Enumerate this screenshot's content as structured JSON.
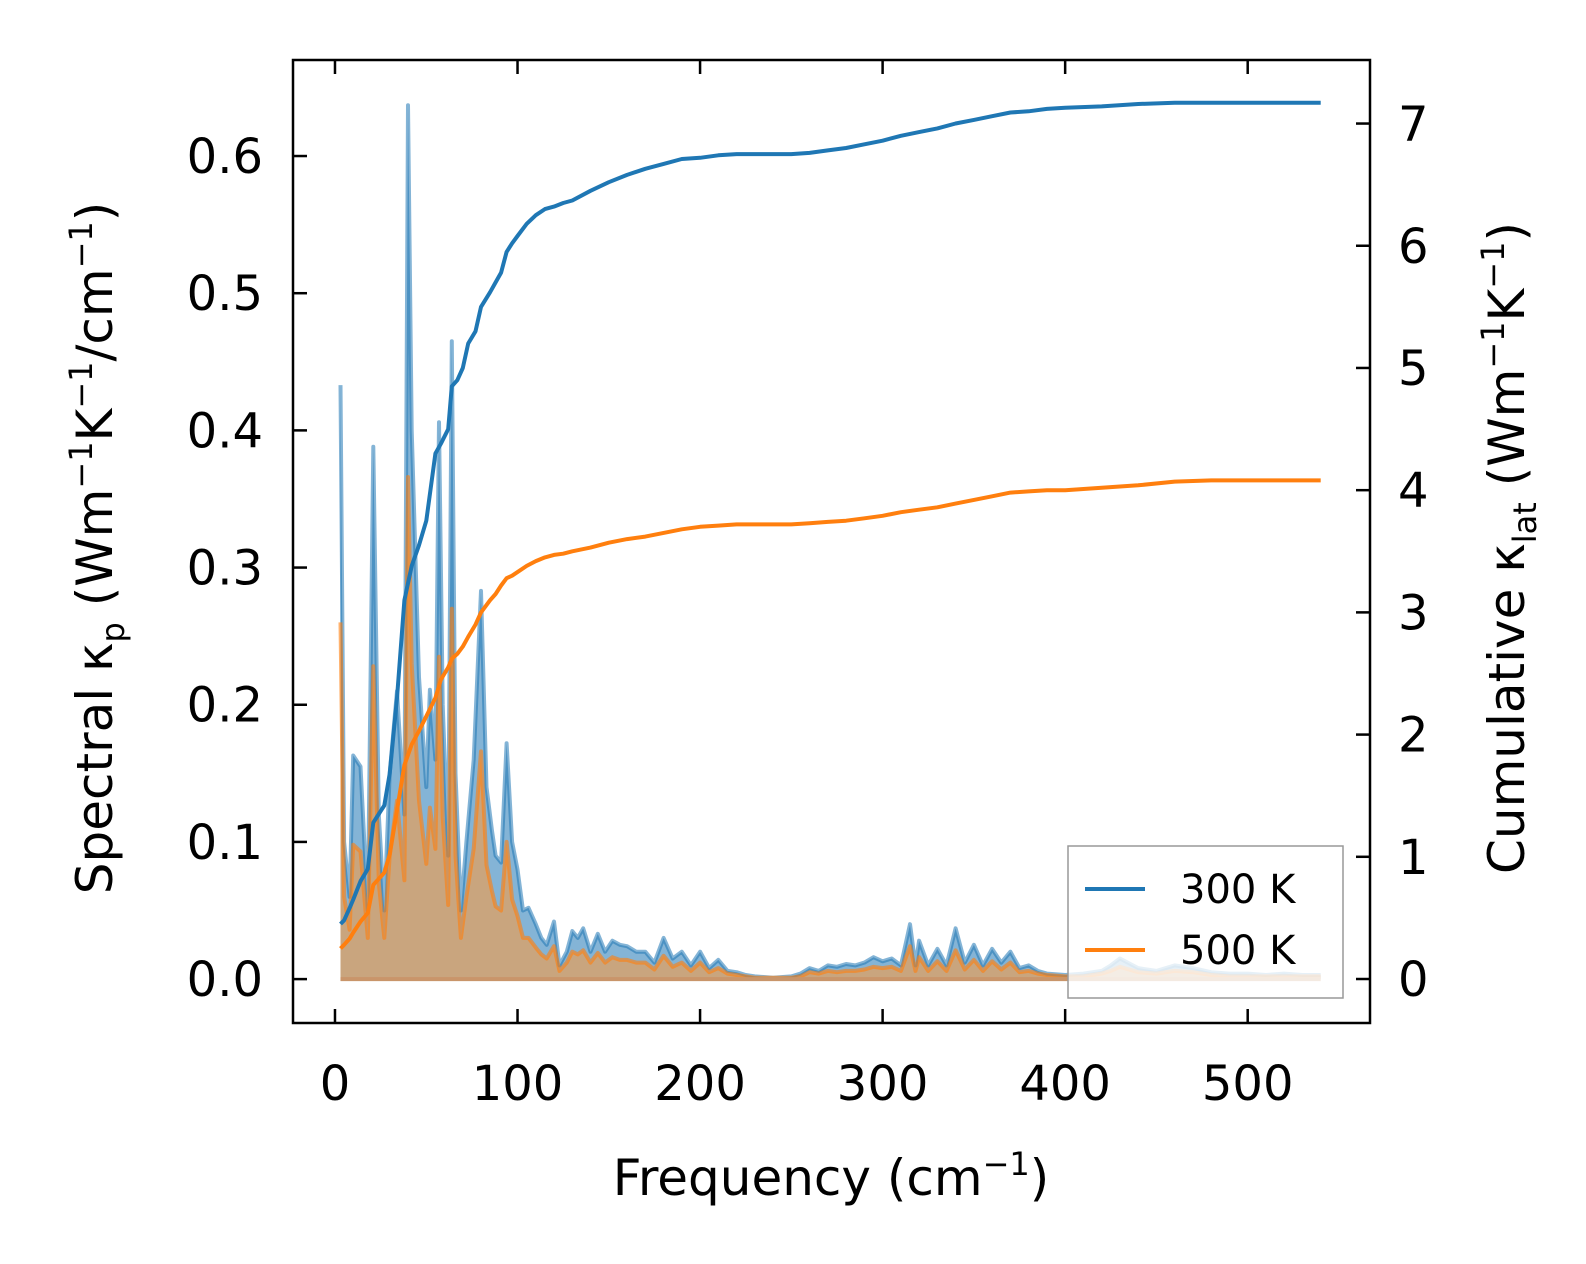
{
  "chart_data": {
    "type": "line",
    "xlabel": "Frequency (cm",
    "xlabel_sup": "−1",
    "xlabel_end": ")",
    "ylabel_left": {
      "main": "Spectral κ",
      "sub": "p",
      "unit_open": " (Wm",
      "sup1": "−1",
      "mid": "K",
      "sup2": "−1",
      "tail": "/cm",
      "sup3": "−1",
      "close": ")"
    },
    "ylabel_right": {
      "main": "Cumulative κ",
      "sub": "lat",
      "unit_open": " (Wm",
      "sup1": "−1",
      "mid": "K",
      "sup2": "−1",
      "close": ")"
    },
    "xlim": [
      -23,
      567
    ],
    "ylim_left": [
      -0.032,
      0.67
    ],
    "ylim_right": [
      -0.36,
      7.52
    ],
    "x_ticks": [
      0,
      100,
      200,
      300,
      400,
      500
    ],
    "x_tick_labels": [
      "0",
      "100",
      "200",
      "300",
      "400",
      "500"
    ],
    "y_left_ticks": [
      0.0,
      0.1,
      0.2,
      0.3,
      0.4,
      0.5,
      0.6
    ],
    "y_left_tick_labels": [
      "0.0",
      "0.1",
      "0.2",
      "0.3",
      "0.4",
      "0.5",
      "0.6"
    ],
    "y_right_ticks": [
      0,
      1,
      2,
      3,
      4,
      5,
      6,
      7
    ],
    "y_right_tick_labels": [
      "0",
      "1",
      "2",
      "3",
      "4",
      "5",
      "6",
      "7"
    ],
    "legend_position": "lower-right",
    "series": [
      {
        "name": "300 K",
        "color": "#1f77b4",
        "spectral_x": [
          3,
          5,
          8,
          10,
          14,
          18,
          21,
          24,
          27,
          30,
          34,
          38,
          40,
          42,
          46,
          50,
          52,
          55,
          57,
          59,
          62,
          64,
          66,
          69,
          72,
          76,
          80,
          83,
          86,
          88,
          91,
          94,
          97,
          100,
          103,
          106,
          110,
          113,
          116,
          120,
          123,
          127,
          130,
          133,
          136,
          140,
          144,
          148,
          152,
          156,
          160,
          165,
          170,
          175,
          180,
          185,
          190,
          195,
          200,
          205,
          210,
          215,
          220,
          225,
          230,
          240,
          250,
          255,
          260,
          265,
          270,
          275,
          280,
          285,
          290,
          295,
          300,
          305,
          310,
          315,
          318,
          320,
          325,
          330,
          335,
          340,
          345,
          350,
          355,
          360,
          365,
          370,
          375,
          380,
          385,
          390,
          400,
          410,
          420,
          425,
          430,
          440,
          450,
          460,
          470,
          480,
          490,
          500,
          510,
          520,
          530,
          540
        ],
        "spectral_y": [
          0.433,
          0.1,
          0.06,
          0.163,
          0.155,
          0.05,
          0.388,
          0.12,
          0.05,
          0.15,
          0.21,
          0.12,
          0.637,
          0.4,
          0.22,
          0.14,
          0.211,
          0.16,
          0.406,
          0.2,
          0.09,
          0.465,
          0.15,
          0.05,
          0.1,
          0.16,
          0.283,
          0.14,
          0.108,
          0.09,
          0.085,
          0.172,
          0.1,
          0.08,
          0.05,
          0.052,
          0.04,
          0.03,
          0.025,
          0.042,
          0.01,
          0.02,
          0.035,
          0.03,
          0.037,
          0.02,
          0.033,
          0.02,
          0.028,
          0.025,
          0.024,
          0.02,
          0.02,
          0.012,
          0.03,
          0.015,
          0.02,
          0.01,
          0.02,
          0.008,
          0.014,
          0.006,
          0.005,
          0.003,
          0.002,
          0.001,
          0.002,
          0.004,
          0.008,
          0.006,
          0.01,
          0.009,
          0.011,
          0.01,
          0.012,
          0.016,
          0.013,
          0.015,
          0.01,
          0.04,
          0.01,
          0.028,
          0.01,
          0.022,
          0.01,
          0.037,
          0.012,
          0.025,
          0.01,
          0.022,
          0.012,
          0.02,
          0.008,
          0.01,
          0.006,
          0.004,
          0.003,
          0.004,
          0.006,
          0.01,
          0.015,
          0.008,
          0.006,
          0.01,
          0.008,
          0.005,
          0.004,
          0.004,
          0.003,
          0.004,
          0.003,
          0.003
        ],
        "cumulative_x": [
          3,
          5,
          8,
          10,
          14,
          18,
          21,
          24,
          27,
          30,
          34,
          38,
          42,
          46,
          50,
          55,
          58,
          62,
          64,
          67,
          70,
          73,
          77,
          80,
          85,
          88,
          91,
          94,
          97,
          100,
          105,
          110,
          115,
          120,
          125,
          130,
          140,
          150,
          160,
          170,
          180,
          190,
          200,
          210,
          220,
          230,
          240,
          250,
          260,
          270,
          280,
          290,
          300,
          310,
          320,
          330,
          340,
          350,
          360,
          370,
          380,
          390,
          400,
          420,
          440,
          460,
          480,
          500,
          520,
          540
        ],
        "cumulative_y": [
          0.45,
          0.48,
          0.58,
          0.65,
          0.8,
          0.9,
          1.28,
          1.35,
          1.42,
          1.68,
          2.3,
          3.1,
          3.38,
          3.55,
          3.75,
          4.3,
          4.38,
          4.5,
          4.85,
          4.9,
          5.0,
          5.2,
          5.3,
          5.5,
          5.62,
          5.7,
          5.78,
          5.95,
          6.02,
          6.08,
          6.18,
          6.25,
          6.3,
          6.32,
          6.35,
          6.37,
          6.45,
          6.52,
          6.58,
          6.63,
          6.67,
          6.71,
          6.72,
          6.74,
          6.75,
          6.75,
          6.75,
          6.75,
          6.76,
          6.78,
          6.8,
          6.83,
          6.86,
          6.9,
          6.93,
          6.96,
          7.0,
          7.03,
          7.06,
          7.09,
          7.1,
          7.12,
          7.13,
          7.14,
          7.16,
          7.17,
          7.17,
          7.17,
          7.17,
          7.17
        ]
      },
      {
        "name": "500 K",
        "color": "#ff7f0e",
        "spectral_x": [
          3,
          5,
          8,
          10,
          14,
          18,
          21,
          24,
          27,
          30,
          34,
          38,
          40,
          42,
          46,
          50,
          52,
          55,
          57,
          59,
          62,
          64,
          66,
          69,
          72,
          76,
          80,
          83,
          86,
          88,
          91,
          94,
          97,
          100,
          103,
          106,
          110,
          113,
          116,
          120,
          123,
          127,
          130,
          133,
          136,
          140,
          144,
          148,
          152,
          156,
          160,
          165,
          170,
          175,
          180,
          185,
          190,
          195,
          200,
          205,
          210,
          215,
          220,
          225,
          230,
          240,
          250,
          255,
          260,
          265,
          270,
          275,
          280,
          285,
          290,
          295,
          300,
          305,
          310,
          315,
          318,
          320,
          325,
          330,
          335,
          340,
          345,
          350,
          355,
          360,
          365,
          370,
          375,
          380,
          385,
          390,
          400,
          410,
          420,
          425,
          430,
          440,
          450,
          460,
          470,
          480,
          490,
          500,
          510,
          520,
          530,
          540
        ],
        "spectral_y": [
          0.26,
          0.06,
          0.036,
          0.098,
          0.093,
          0.03,
          0.228,
          0.07,
          0.03,
          0.09,
          0.13,
          0.072,
          0.366,
          0.23,
          0.13,
          0.084,
          0.125,
          0.095,
          0.235,
          0.118,
          0.054,
          0.27,
          0.09,
          0.03,
          0.06,
          0.095,
          0.166,
          0.083,
          0.064,
          0.053,
          0.05,
          0.1,
          0.058,
          0.046,
          0.03,
          0.03,
          0.023,
          0.018,
          0.015,
          0.024,
          0.006,
          0.012,
          0.02,
          0.018,
          0.021,
          0.012,
          0.019,
          0.012,
          0.016,
          0.014,
          0.014,
          0.012,
          0.012,
          0.007,
          0.017,
          0.009,
          0.012,
          0.006,
          0.012,
          0.005,
          0.008,
          0.004,
          0.003,
          0.002,
          0.001,
          0.001,
          0.001,
          0.002,
          0.005,
          0.004,
          0.006,
          0.005,
          0.006,
          0.006,
          0.007,
          0.009,
          0.008,
          0.009,
          0.006,
          0.024,
          0.006,
          0.016,
          0.006,
          0.013,
          0.006,
          0.021,
          0.007,
          0.014,
          0.006,
          0.013,
          0.007,
          0.012,
          0.005,
          0.006,
          0.004,
          0.003,
          0.002,
          0.002,
          0.004,
          0.006,
          0.009,
          0.005,
          0.004,
          0.006,
          0.005,
          0.003,
          0.002,
          0.002,
          0.002,
          0.002,
          0.002,
          0.002
        ],
        "cumulative_x": [
          3,
          5,
          8,
          10,
          14,
          18,
          21,
          24,
          27,
          30,
          34,
          38,
          42,
          46,
          50,
          55,
          58,
          62,
          64,
          67,
          70,
          73,
          77,
          80,
          85,
          88,
          91,
          94,
          97,
          100,
          105,
          110,
          115,
          120,
          125,
          130,
          140,
          150,
          160,
          170,
          180,
          190,
          200,
          210,
          220,
          230,
          240,
          250,
          260,
          270,
          280,
          290,
          300,
          310,
          320,
          330,
          340,
          350,
          360,
          370,
          380,
          390,
          400,
          420,
          440,
          460,
          480,
          500,
          520,
          540
        ],
        "cumulative_y": [
          0.25,
          0.28,
          0.33,
          0.38,
          0.47,
          0.54,
          0.77,
          0.82,
          0.87,
          1.02,
          1.38,
          1.75,
          1.92,
          2.03,
          2.15,
          2.3,
          2.45,
          2.55,
          2.62,
          2.66,
          2.72,
          2.8,
          2.9,
          3.0,
          3.1,
          3.15,
          3.22,
          3.28,
          3.3,
          3.33,
          3.38,
          3.42,
          3.45,
          3.47,
          3.48,
          3.5,
          3.53,
          3.57,
          3.6,
          3.62,
          3.65,
          3.68,
          3.7,
          3.71,
          3.72,
          3.72,
          3.72,
          3.72,
          3.73,
          3.74,
          3.75,
          3.77,
          3.79,
          3.82,
          3.84,
          3.86,
          3.89,
          3.92,
          3.95,
          3.98,
          3.99,
          4.0,
          4.0,
          4.02,
          4.04,
          4.07,
          4.08,
          4.08,
          4.08,
          4.08
        ]
      }
    ]
  }
}
